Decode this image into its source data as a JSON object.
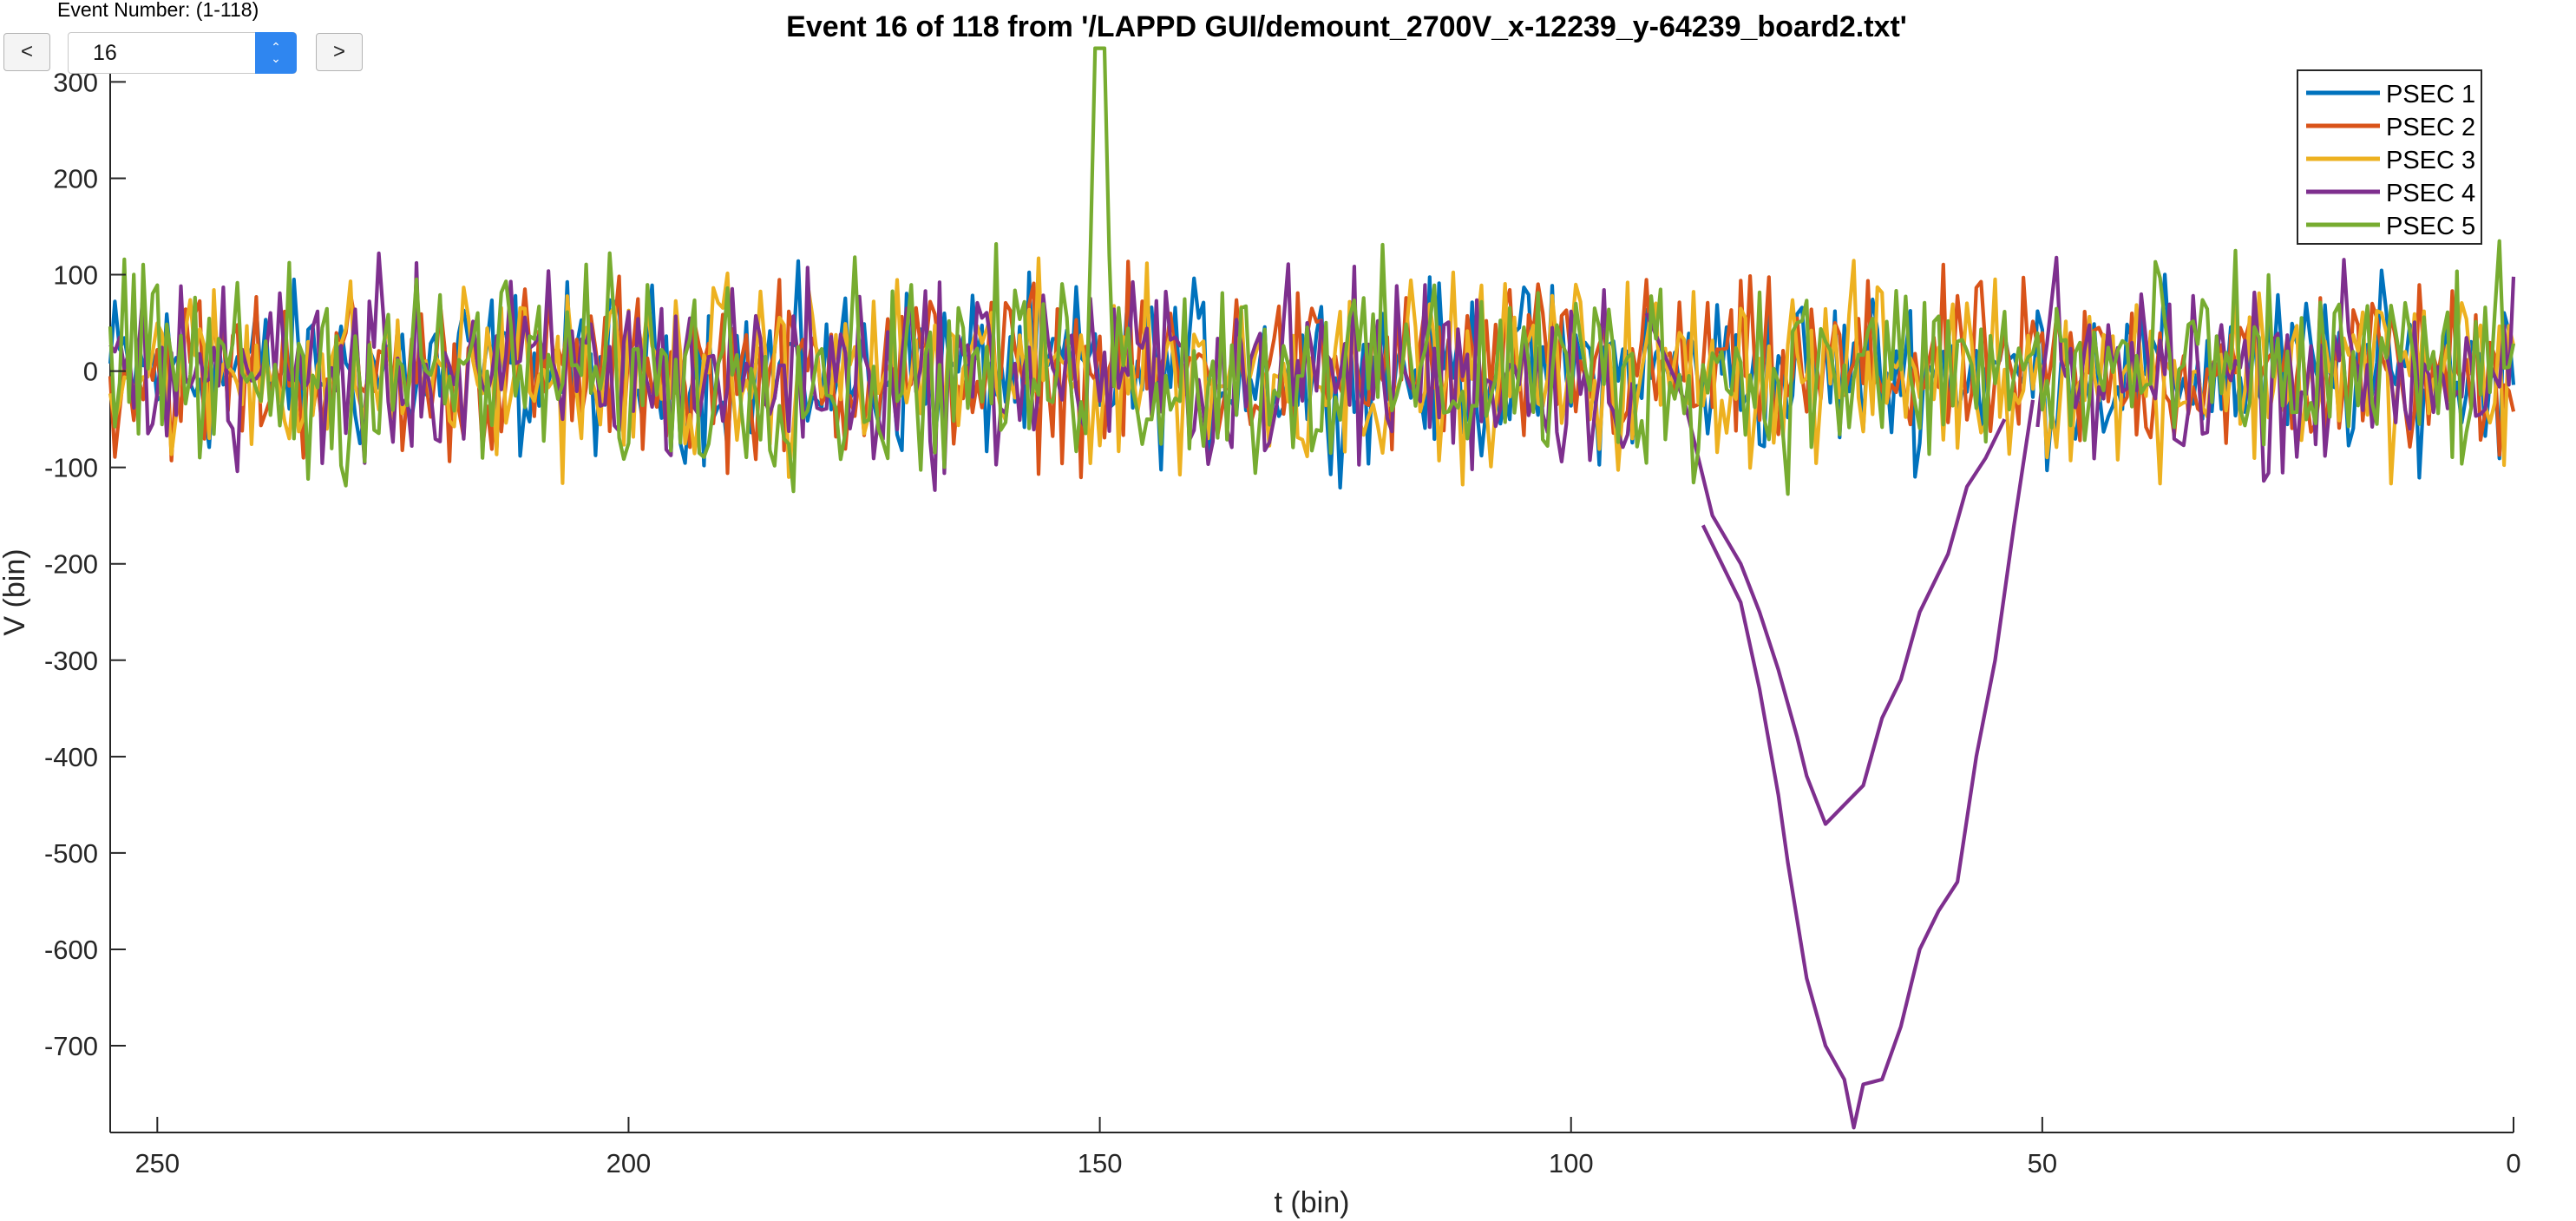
{
  "controls": {
    "event_number_label": "Event Number: (1-118)",
    "prev_label": "<",
    "next_label": ">",
    "event_value": "16"
  },
  "chart_data": {
    "type": "line",
    "title": "Event 16 of 118 from '/LAPPD GUI/demount_2700V_x-12239_y-64239_board2.txt'",
    "xlabel": "t (bin)",
    "ylabel": "V (bin)",
    "xlim": [
      0,
      255
    ],
    "ylim": [
      -790,
      340
    ],
    "x_reversed": true,
    "x_ticks": [
      250,
      200,
      150,
      100,
      50,
      0
    ],
    "y_ticks": [
      300,
      200,
      100,
      0,
      -100,
      -200,
      -300,
      -400,
      -500,
      -600,
      -700
    ],
    "legend_position": "top-right",
    "series": [
      {
        "name": "PSEC 1",
        "color": "#0072BD",
        "noise_center": 0,
        "noise_range": [
          -130,
          165
        ],
        "pulse": null
      },
      {
        "name": "PSEC 2",
        "color": "#D95319",
        "noise_center": 0,
        "noise_range": [
          -180,
          125
        ],
        "pulse": null
      },
      {
        "name": "PSEC 3",
        "color": "#EDB120",
        "noise_center": 0,
        "noise_range": [
          -160,
          160
        ],
        "pulse": null
      },
      {
        "name": "PSEC 4",
        "color": "#7E2F8E",
        "noise_center": 0,
        "noise_range": [
          -180,
          160
        ],
        "pulse": [
          [
            92,
            60
          ],
          [
            88,
            -30
          ],
          [
            85,
            -150
          ],
          [
            82,
            -200
          ],
          [
            80,
            -250
          ],
          [
            78,
            -310
          ],
          [
            76,
            -380
          ],
          [
            75,
            -420
          ],
          [
            73,
            -470
          ],
          [
            71,
            -450
          ],
          [
            69,
            -430
          ],
          [
            67,
            -360
          ],
          [
            65,
            -320
          ],
          [
            63,
            -250
          ],
          [
            60,
            -190
          ],
          [
            58,
            -120
          ],
          [
            56,
            -90
          ],
          [
            54,
            -50
          ],
          [
            86,
            -160
          ],
          [
            84,
            -200
          ],
          [
            82,
            -240
          ],
          [
            80,
            -330
          ],
          [
            78,
            -440
          ],
          [
            77,
            -510
          ],
          [
            75,
            -630
          ],
          [
            73,
            -700
          ],
          [
            71,
            -735
          ],
          [
            70,
            -785
          ],
          [
            69,
            -740
          ],
          [
            67,
            -735
          ],
          [
            65,
            -680
          ],
          [
            63,
            -600
          ],
          [
            61,
            -560
          ],
          [
            59,
            -530
          ],
          [
            57,
            -400
          ],
          [
            55,
            -300
          ],
          [
            53,
            -160
          ],
          [
            51,
            -30
          ]
        ]
      },
      {
        "name": "PSEC 5",
        "color": "#77AC30",
        "noise_center": 0,
        "noise_range": [
          -170,
          190
        ],
        "spike": [
          150,
          335
        ],
        "pulse": null
      }
    ]
  }
}
